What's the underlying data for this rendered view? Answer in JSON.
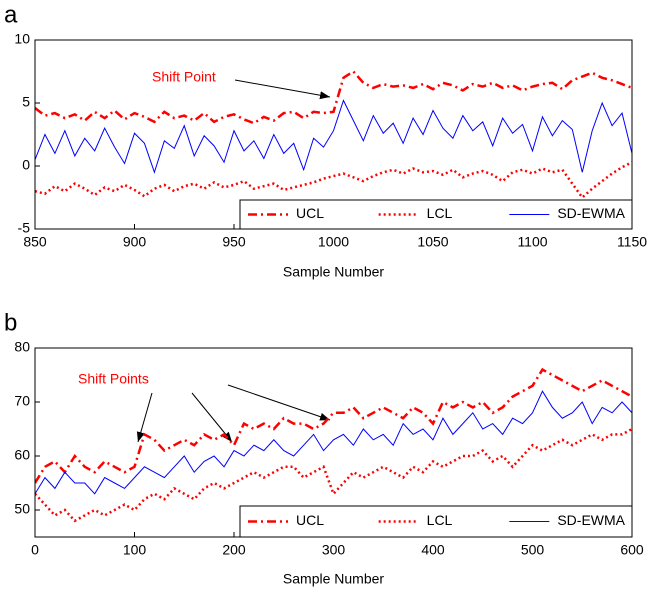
{
  "chart_data": [
    {
      "type": "line",
      "title": "a",
      "xlabel": "Sample Number",
      "xlim": [
        850,
        1150
      ],
      "xticks": [
        850,
        900,
        950,
        1000,
        1050,
        1100,
        1150
      ],
      "ylim": [
        -5,
        10
      ],
      "yticks": [
        -5,
        0,
        5,
        10
      ],
      "legend": "lower right",
      "annotation": "Shift Point",
      "x": [
        850,
        855,
        860,
        865,
        870,
        875,
        880,
        885,
        890,
        895,
        900,
        905,
        910,
        915,
        920,
        925,
        930,
        935,
        940,
        945,
        950,
        955,
        960,
        965,
        970,
        975,
        980,
        985,
        990,
        995,
        1000,
        1005,
        1010,
        1015,
        1020,
        1025,
        1030,
        1035,
        1040,
        1045,
        1050,
        1055,
        1060,
        1065,
        1070,
        1075,
        1080,
        1085,
        1090,
        1095,
        1100,
        1105,
        1110,
        1115,
        1120,
        1125,
        1130,
        1135,
        1140,
        1145,
        1150
      ],
      "series": [
        {
          "name": "UCL",
          "color": "#ff0000",
          "linestyle": "dashdot",
          "values": [
            4.6,
            4.0,
            4.2,
            3.8,
            4.1,
            3.6,
            4.3,
            3.8,
            4.4,
            3.7,
            4.2,
            3.9,
            3.5,
            4.3,
            3.8,
            4.0,
            3.6,
            4.2,
            3.5,
            3.9,
            4.1,
            3.7,
            3.4,
            3.9,
            3.6,
            4.2,
            4.3,
            3.8,
            4.3,
            4.2,
            4.3,
            7.0,
            7.5,
            6.6,
            6.2,
            6.5,
            6.3,
            6.4,
            6.2,
            6.5,
            6.1,
            6.6,
            6.4,
            6.0,
            6.5,
            6.3,
            6.6,
            6.2,
            6.4,
            6.0,
            6.3,
            6.5,
            6.6,
            6.1,
            6.8,
            7.1,
            7.4,
            7.0,
            6.8,
            6.5,
            6.2
          ]
        },
        {
          "name": "LCL",
          "color": "#ff0000",
          "linestyle": "dotted",
          "values": [
            -2.0,
            -2.2,
            -1.6,
            -2.0,
            -1.4,
            -1.8,
            -2.3,
            -1.7,
            -2.0,
            -1.5,
            -1.9,
            -2.4,
            -1.8,
            -1.5,
            -2.0,
            -1.6,
            -1.4,
            -1.8,
            -1.3,
            -1.7,
            -1.5,
            -1.2,
            -1.8,
            -1.6,
            -1.4,
            -1.9,
            -1.7,
            -1.5,
            -1.3,
            -1.0,
            -0.8,
            -0.6,
            -0.9,
            -1.2,
            -0.8,
            -0.5,
            -0.3,
            -0.6,
            -0.2,
            -0.5,
            -0.4,
            -0.7,
            -0.3,
            -0.9,
            -0.6,
            -0.4,
            -0.7,
            -1.2,
            -0.5,
            -0.3,
            -0.6,
            -0.2,
            -0.5,
            -0.3,
            -1.4,
            -2.5,
            -1.8,
            -1.2,
            -0.6,
            -0.1,
            0.3
          ]
        },
        {
          "name": "SD-EWMA",
          "color": "#0000ff",
          "linestyle": "solid",
          "values": [
            0.5,
            2.5,
            1.0,
            2.8,
            0.8,
            2.2,
            1.2,
            3.0,
            1.5,
            0.2,
            2.6,
            1.8,
            -0.5,
            2.0,
            1.4,
            3.2,
            0.8,
            2.4,
            1.6,
            0.3,
            2.8,
            1.2,
            2.0,
            0.6,
            2.5,
            1.0,
            1.8,
            -0.3,
            2.2,
            1.5,
            2.8,
            5.2,
            3.6,
            2.0,
            4.0,
            2.6,
            3.4,
            1.8,
            3.8,
            2.5,
            4.4,
            3.0,
            2.2,
            4.0,
            2.8,
            3.5,
            1.6,
            3.8,
            2.6,
            3.3,
            1.2,
            3.9,
            2.4,
            3.6,
            2.9,
            -0.5,
            2.8,
            5.0,
            3.2,
            4.2,
            1.0
          ]
        }
      ]
    },
    {
      "type": "line",
      "title": "b",
      "xlabel": "Sample Number",
      "xlim": [
        0,
        600
      ],
      "xticks": [
        0,
        100,
        200,
        300,
        400,
        500,
        600
      ],
      "ylim": [
        45,
        80
      ],
      "yticks": [
        50,
        60,
        70,
        80
      ],
      "legend": "lower right",
      "annotation": "Shift Points",
      "x": [
        0,
        10,
        20,
        30,
        40,
        50,
        60,
        70,
        80,
        90,
        100,
        110,
        120,
        130,
        140,
        150,
        160,
        170,
        180,
        190,
        200,
        210,
        220,
        230,
        240,
        250,
        260,
        270,
        280,
        290,
        300,
        310,
        320,
        330,
        340,
        350,
        360,
        370,
        380,
        390,
        400,
        410,
        420,
        430,
        440,
        450,
        460,
        470,
        480,
        490,
        500,
        510,
        520,
        530,
        540,
        550,
        560,
        570,
        580,
        590,
        600
      ],
      "series": [
        {
          "name": "UCL",
          "color": "#ff0000",
          "linestyle": "dashdot",
          "values": [
            55,
            58,
            59,
            57,
            60,
            58,
            57,
            59,
            58,
            57,
            58,
            64,
            63,
            61,
            62,
            63,
            62,
            64,
            63,
            64,
            62,
            66,
            65,
            66,
            65,
            67,
            66,
            66,
            65,
            66,
            68,
            68,
            69,
            67,
            68,
            69,
            68,
            67,
            69,
            68,
            66,
            70,
            69,
            70,
            69,
            70,
            68,
            69,
            71,
            72,
            73,
            76,
            75,
            74,
            73,
            72,
            73,
            74,
            73,
            72,
            71
          ]
        },
        {
          "name": "LCL",
          "color": "#ff0000",
          "linestyle": "dotted",
          "values": [
            53,
            51,
            49,
            50,
            48,
            49,
            50,
            49,
            50,
            51,
            50,
            52,
            53,
            52,
            54,
            53,
            52,
            54,
            55,
            54,
            55,
            56,
            57,
            56,
            57,
            58,
            58,
            56,
            57,
            58,
            53,
            55,
            57,
            56,
            57,
            58,
            57,
            56,
            58,
            57,
            59,
            58,
            59,
            60,
            60,
            61,
            59,
            60,
            58,
            60,
            62,
            61,
            62,
            63,
            62,
            63,
            64,
            63,
            64,
            64,
            65
          ]
        },
        {
          "name": "SD-EWMA",
          "color": "#0000ff",
          "linestyle": "solid",
          "values": [
            53,
            56,
            54,
            57,
            55,
            55,
            53,
            56,
            55,
            54,
            56,
            58,
            57,
            56,
            58,
            60,
            57,
            59,
            60,
            58,
            61,
            60,
            62,
            61,
            63,
            61,
            60,
            62,
            64,
            61,
            63,
            64,
            62,
            65,
            63,
            64,
            62,
            66,
            64,
            65,
            63,
            67,
            64,
            66,
            68,
            65,
            66,
            64,
            67,
            66,
            68,
            72,
            69,
            67,
            68,
            70,
            66,
            69,
            68,
            70,
            68
          ]
        }
      ]
    }
  ]
}
